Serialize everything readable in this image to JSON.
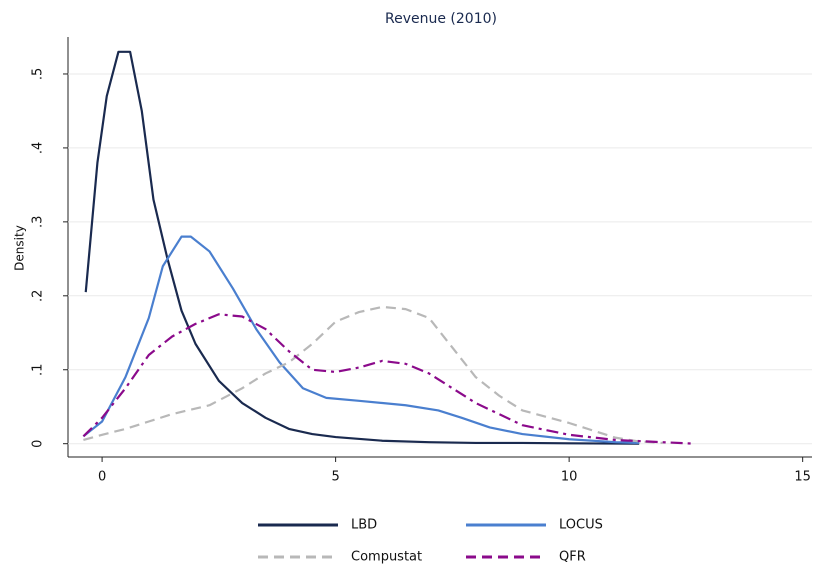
{
  "chart_data": {
    "type": "line",
    "title": "Revenue (2010)",
    "y_label": "Density",
    "xlim": [
      -0.73,
      15.2
    ],
    "ylim": [
      -0.018,
      0.55
    ],
    "xticks": [
      0,
      5,
      10,
      15
    ],
    "yticks": [
      0,
      {
        "value": 0.1,
        "label": ".1"
      },
      {
        "value": 0.2,
        "label": ".2"
      },
      {
        "value": 0.3,
        "label": ".3"
      },
      {
        "value": 0.4,
        "label": ".4"
      },
      {
        "value": 0.5,
        "label": ".5"
      }
    ],
    "grid": true,
    "series": [
      {
        "name": "LBD",
        "color": "#1a2a4f",
        "style": "solid",
        "x": [
          -0.35,
          -0.1,
          0.1,
          0.35,
          0.6,
          0.85,
          1.1,
          1.4,
          1.7,
          2,
          2.5,
          3,
          3.5,
          4,
          4.5,
          5,
          6,
          7,
          8,
          9,
          10,
          11.5
        ],
        "values": [
          0.205,
          0.38,
          0.47,
          0.53,
          0.53,
          0.45,
          0.33,
          0.25,
          0.18,
          0.135,
          0.085,
          0.055,
          0.035,
          0.02,
          0.013,
          0.009,
          0.004,
          0.002,
          0.001,
          0.001,
          0.0005,
          0
        ]
      },
      {
        "name": "LOCUS",
        "color": "#4a7fcf",
        "style": "solid",
        "x": [
          -0.4,
          0,
          0.5,
          1,
          1.3,
          1.7,
          1.9,
          2.3,
          2.8,
          3.3,
          3.8,
          4.3,
          4.8,
          5.5,
          6.5,
          7.2,
          7.7,
          8.3,
          9,
          10,
          11,
          11.5
        ],
        "values": [
          0.01,
          0.03,
          0.09,
          0.17,
          0.24,
          0.28,
          0.28,
          0.26,
          0.21,
          0.155,
          0.11,
          0.075,
          0.062,
          0.058,
          0.052,
          0.045,
          0.035,
          0.022,
          0.013,
          0.006,
          0.002,
          0.001
        ]
      },
      {
        "name": "Compustat",
        "color": "#b8b8b8",
        "style": "dash",
        "x": [
          -0.4,
          0,
          0.5,
          1,
          1.5,
          2.3,
          3,
          3.5,
          4,
          4.5,
          5,
          5.5,
          6,
          6.5,
          7,
          7.5,
          8,
          8.5,
          9,
          10,
          10.5,
          11,
          11.5,
          12
        ],
        "values": [
          0.005,
          0.012,
          0.02,
          0.03,
          0.04,
          0.052,
          0.075,
          0.095,
          0.11,
          0.135,
          0.165,
          0.178,
          0.185,
          0.182,
          0.17,
          0.13,
          0.09,
          0.065,
          0.045,
          0.028,
          0.018,
          0.008,
          0.003,
          0.001
        ]
      },
      {
        "name": "QFR",
        "color": "#8b0a8b",
        "style": "dashdot",
        "x": [
          -0.4,
          0,
          0.5,
          1,
          1.5,
          2,
          2.5,
          3,
          3.5,
          4,
          4.5,
          5,
          5.5,
          6,
          6.5,
          7,
          7.5,
          8,
          8.5,
          9,
          10,
          11,
          12,
          12.7
        ],
        "values": [
          0.01,
          0.035,
          0.075,
          0.12,
          0.145,
          0.162,
          0.175,
          0.172,
          0.155,
          0.125,
          0.1,
          0.097,
          0.103,
          0.112,
          0.108,
          0.095,
          0.075,
          0.055,
          0.04,
          0.025,
          0.012,
          0.005,
          0.002,
          0
        ]
      }
    ]
  }
}
